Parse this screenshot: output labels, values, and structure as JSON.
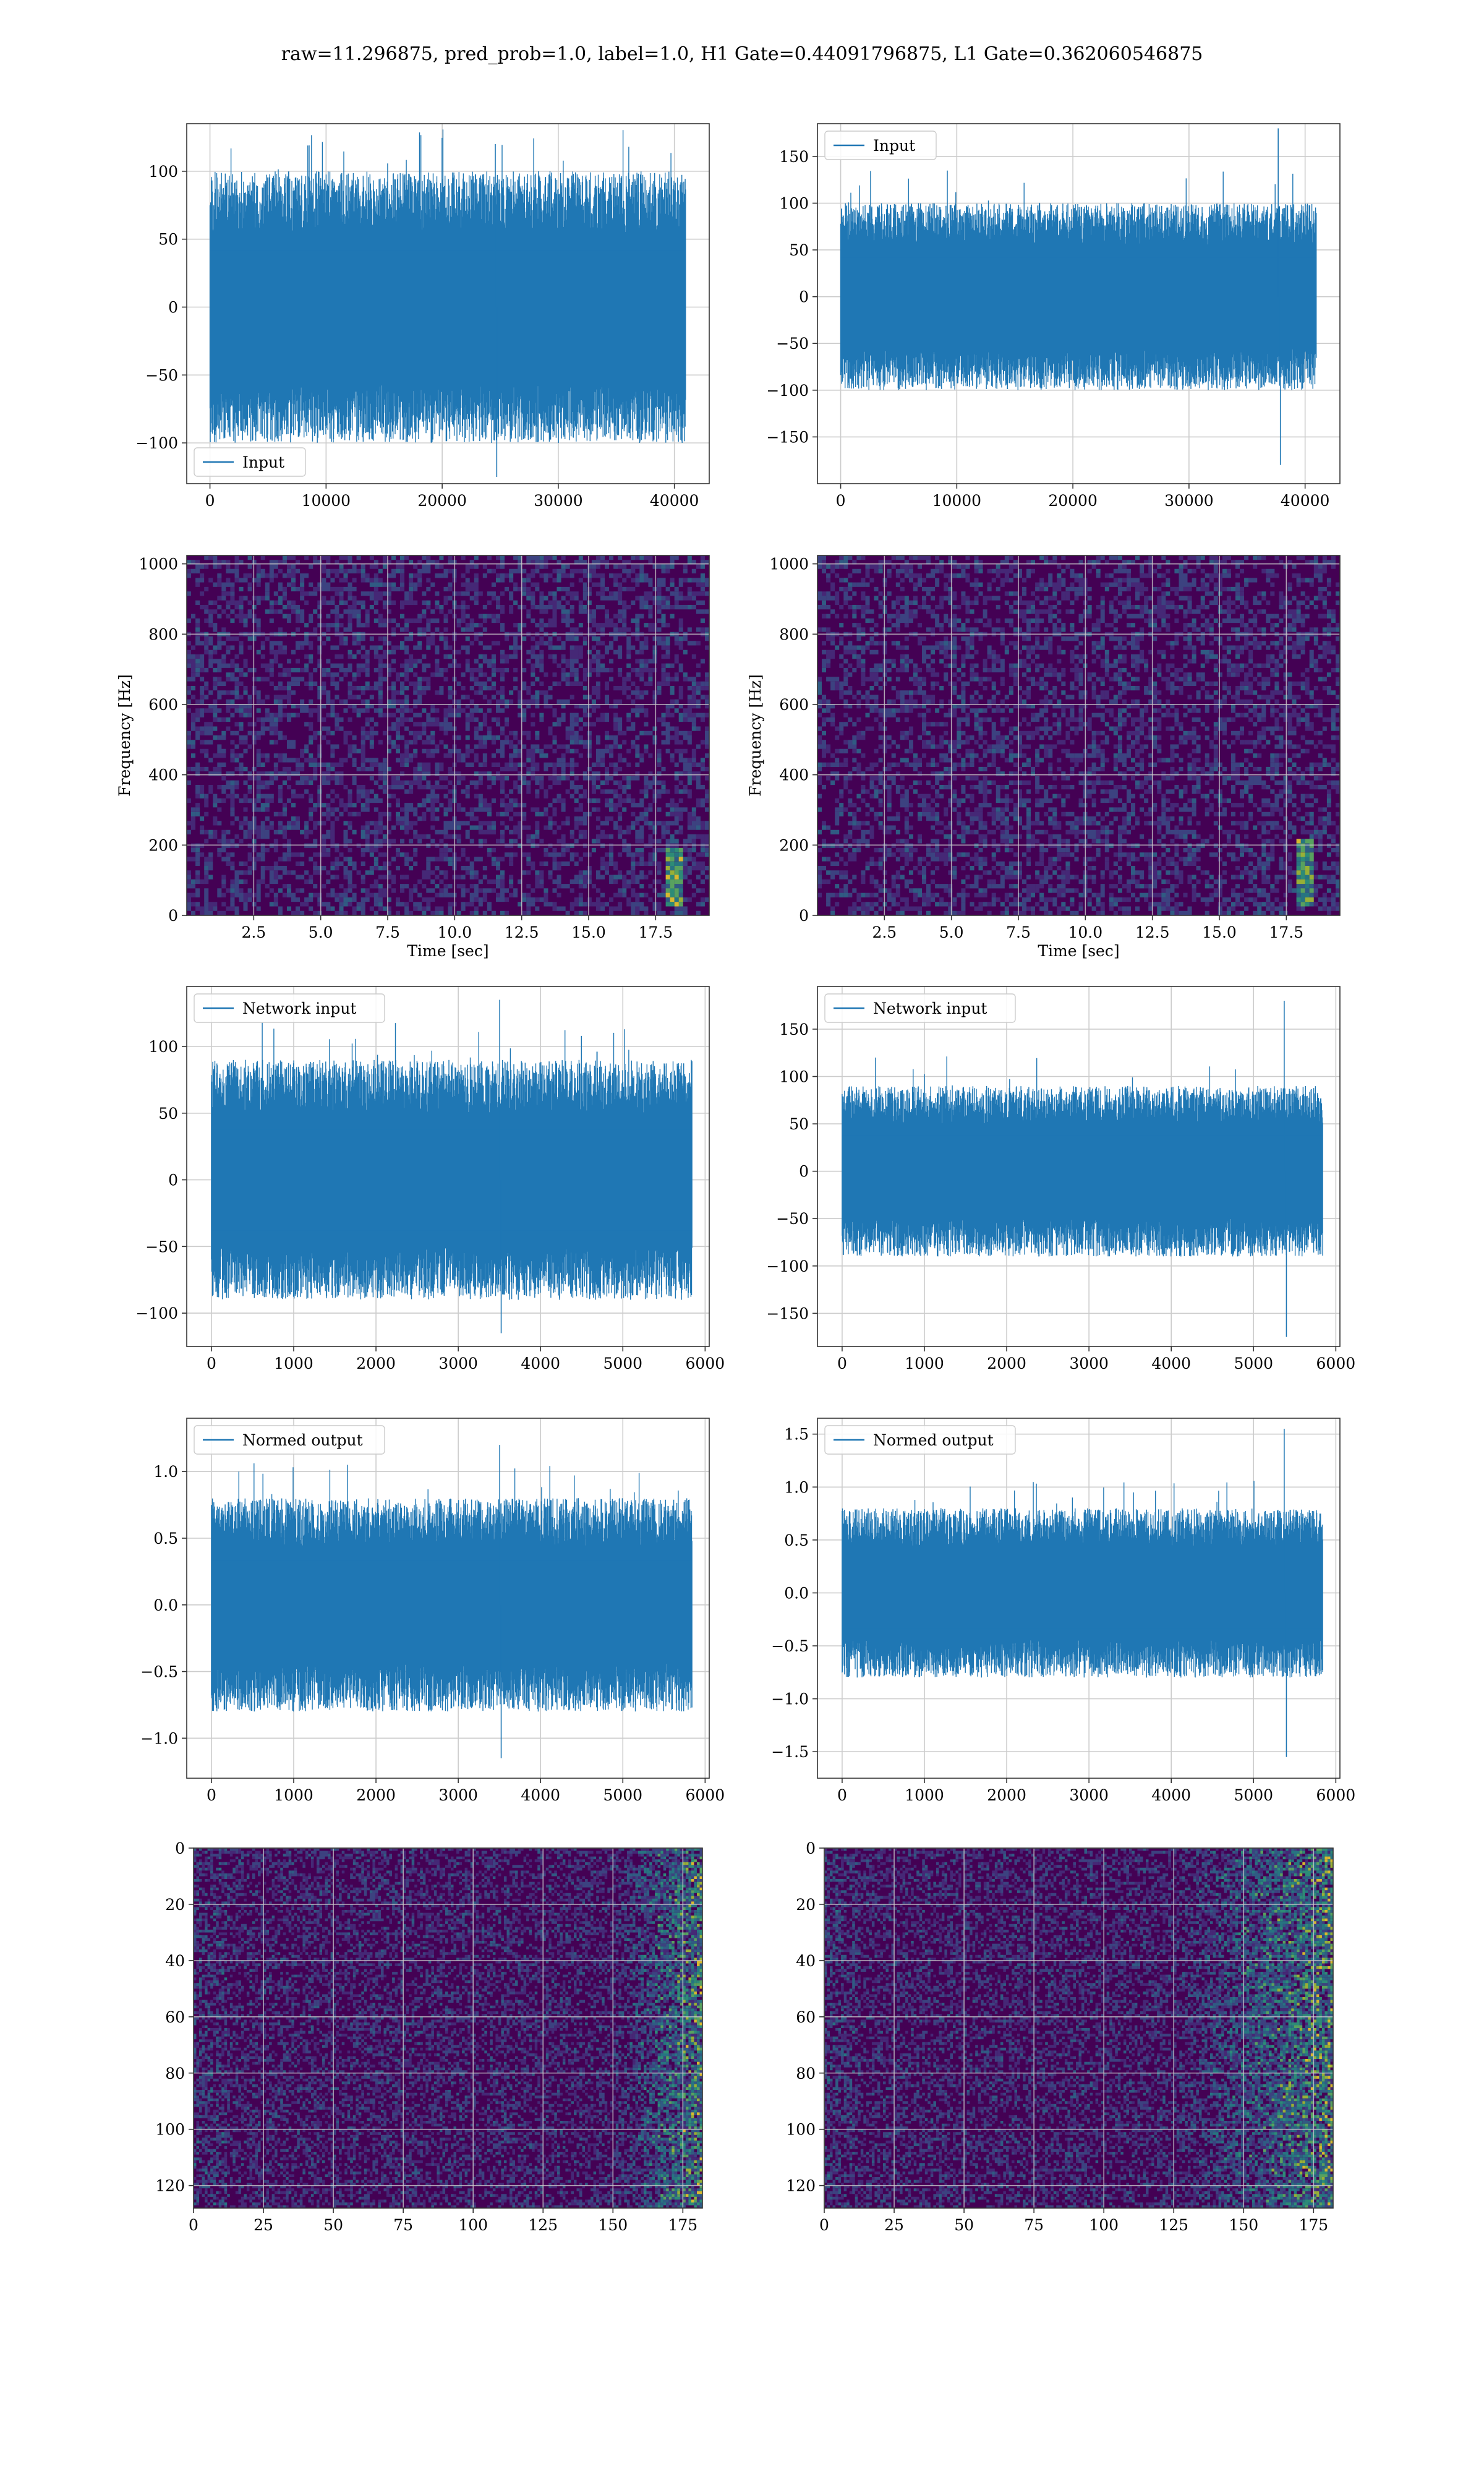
{
  "title": "raw=11.296875, pred_prob=1.0, label=1.0, H1 Gate=0.44091796875, L1 Gate=0.362060546875",
  "colors": {
    "signal": "#1f77b4",
    "grid": "#cccccc",
    "axis": "#333333",
    "spec_bg": "#440154",
    "spec_mid": "#31688e",
    "spec_hi": "#35b779",
    "spec_peak": "#fde725"
  },
  "chart_data": [
    {
      "id": "h1-input",
      "type": "line",
      "series": [
        {
          "name": "Input",
          "values_range": [
            -100,
            100
          ],
          "spikes": [
            120,
            -125
          ]
        }
      ],
      "xlim": [
        -2000,
        43000
      ],
      "ylim": [
        -130,
        135
      ],
      "xticks": [
        0,
        10000,
        20000,
        30000,
        40000
      ],
      "yticks": [
        -100,
        -50,
        0,
        50,
        100
      ],
      "xlabel": "",
      "ylabel": "",
      "legend": "lower-left",
      "grid": true
    },
    {
      "id": "l1-input",
      "type": "line",
      "series": [
        {
          "name": "Input",
          "values_range": [
            -100,
            100
          ],
          "spikes": [
            180,
            -180
          ]
        }
      ],
      "xlim": [
        -2000,
        43000
      ],
      "ylim": [
        -200,
        185
      ],
      "xticks": [
        0,
        10000,
        20000,
        30000,
        40000
      ],
      "yticks": [
        -150,
        -100,
        -50,
        0,
        50,
        100,
        150
      ],
      "xlabel": "",
      "ylabel": "",
      "legend": "upper-left",
      "grid": true
    },
    {
      "id": "h1-spectrogram",
      "type": "heatmap",
      "xlim": [
        0,
        19.5
      ],
      "ylim": [
        0,
        1024
      ],
      "xticks": [
        "2.5",
        "5.0",
        "7.5",
        "10.0",
        "12.5",
        "15.0",
        "17.5"
      ],
      "yticks": [
        0,
        200,
        400,
        600,
        800,
        1000
      ],
      "xlabel": "Time [sec]",
      "ylabel": "Frequency [Hz]",
      "grid": true,
      "features": [
        {
          "time": 18.2,
          "freq_range": [
            30,
            190
          ],
          "level": "high"
        }
      ]
    },
    {
      "id": "l1-spectrogram",
      "type": "heatmap",
      "xlim": [
        0,
        19.5
      ],
      "ylim": [
        0,
        1024
      ],
      "xticks": [
        "2.5",
        "5.0",
        "7.5",
        "10.0",
        "12.5",
        "15.0",
        "17.5"
      ],
      "yticks": [
        0,
        200,
        400,
        600,
        800,
        1000
      ],
      "xlabel": "Time [sec]",
      "ylabel": "Frequency [Hz]",
      "grid": true,
      "features": [
        {
          "time": 18.2,
          "freq_range": [
            20,
            220
          ],
          "level": "high"
        }
      ]
    },
    {
      "id": "h1-network-input",
      "type": "line",
      "series": [
        {
          "name": "Network input",
          "values_range": [
            -90,
            90
          ],
          "spikes": [
            135,
            -115
          ]
        }
      ],
      "xlim": [
        -300,
        6050
      ],
      "ylim": [
        -125,
        145
      ],
      "xticks": [
        0,
        1000,
        2000,
        3000,
        4000,
        5000,
        6000
      ],
      "yticks": [
        -100,
        -50,
        0,
        50,
        100
      ],
      "xlabel": "",
      "ylabel": "",
      "legend": "upper-left",
      "grid": true
    },
    {
      "id": "l1-network-input",
      "type": "line",
      "series": [
        {
          "name": "Network input",
          "values_range": [
            -90,
            90
          ],
          "spikes": [
            180,
            -175
          ]
        }
      ],
      "xlim": [
        -300,
        6050
      ],
      "ylim": [
        -185,
        195
      ],
      "xticks": [
        0,
        1000,
        2000,
        3000,
        4000,
        5000,
        6000
      ],
      "yticks": [
        -150,
        -100,
        -50,
        0,
        50,
        100,
        150
      ],
      "xlabel": "",
      "ylabel": "",
      "legend": "upper-left",
      "grid": true
    },
    {
      "id": "h1-normed-output",
      "type": "line",
      "series": [
        {
          "name": "Normed output",
          "values_range": [
            -0.8,
            0.8
          ],
          "spikes": [
            1.2,
            -1.15
          ]
        }
      ],
      "xlim": [
        -300,
        6050
      ],
      "ylim": [
        -1.3,
        1.4
      ],
      "xticks": [
        0,
        1000,
        2000,
        3000,
        4000,
        5000,
        6000
      ],
      "yticks": [
        "−1.0",
        "−0.5",
        "0.0",
        "0.5",
        "1.0"
      ],
      "ytick_values": [
        -1.0,
        -0.5,
        0.0,
        0.5,
        1.0
      ],
      "xlabel": "",
      "ylabel": "",
      "legend": "upper-left",
      "grid": true
    },
    {
      "id": "l1-normed-output",
      "type": "line",
      "series": [
        {
          "name": "Normed output",
          "values_range": [
            -0.8,
            0.8
          ],
          "spikes": [
            1.55,
            -1.55
          ]
        }
      ],
      "xlim": [
        -300,
        6050
      ],
      "ylim": [
        -1.75,
        1.65
      ],
      "xticks": [
        0,
        1000,
        2000,
        3000,
        4000,
        5000,
        6000
      ],
      "yticks": [
        "−1.5",
        "−1.0",
        "−0.5",
        "0.0",
        "0.5",
        "1.0",
        "1.5"
      ],
      "ytick_values": [
        -1.5,
        -1.0,
        -0.5,
        0.0,
        0.5,
        1.0,
        1.5
      ],
      "xlabel": "",
      "ylabel": "",
      "legend": "upper-left",
      "grid": true
    },
    {
      "id": "h1-feature-map",
      "type": "heatmap",
      "xlim": [
        0,
        182
      ],
      "ylim": [
        128,
        0
      ],
      "xticks": [
        0,
        25,
        50,
        75,
        100,
        125,
        150,
        175
      ],
      "yticks": [
        0,
        20,
        40,
        60,
        80,
        100,
        120
      ],
      "xlabel": "",
      "ylabel": "",
      "grid": true,
      "features": [
        {
          "x_range": [
            150,
            182
          ],
          "level": "high"
        }
      ]
    },
    {
      "id": "l1-feature-map",
      "type": "heatmap",
      "xlim": [
        0,
        182
      ],
      "ylim": [
        128,
        0
      ],
      "xticks": [
        0,
        25,
        50,
        75,
        100,
        125,
        150,
        175
      ],
      "yticks": [
        0,
        20,
        40,
        60,
        80,
        100,
        120
      ],
      "xlabel": "",
      "ylabel": "",
      "grid": true,
      "features": [
        {
          "x_range": [
            125,
            182
          ],
          "level": "high"
        }
      ]
    }
  ]
}
